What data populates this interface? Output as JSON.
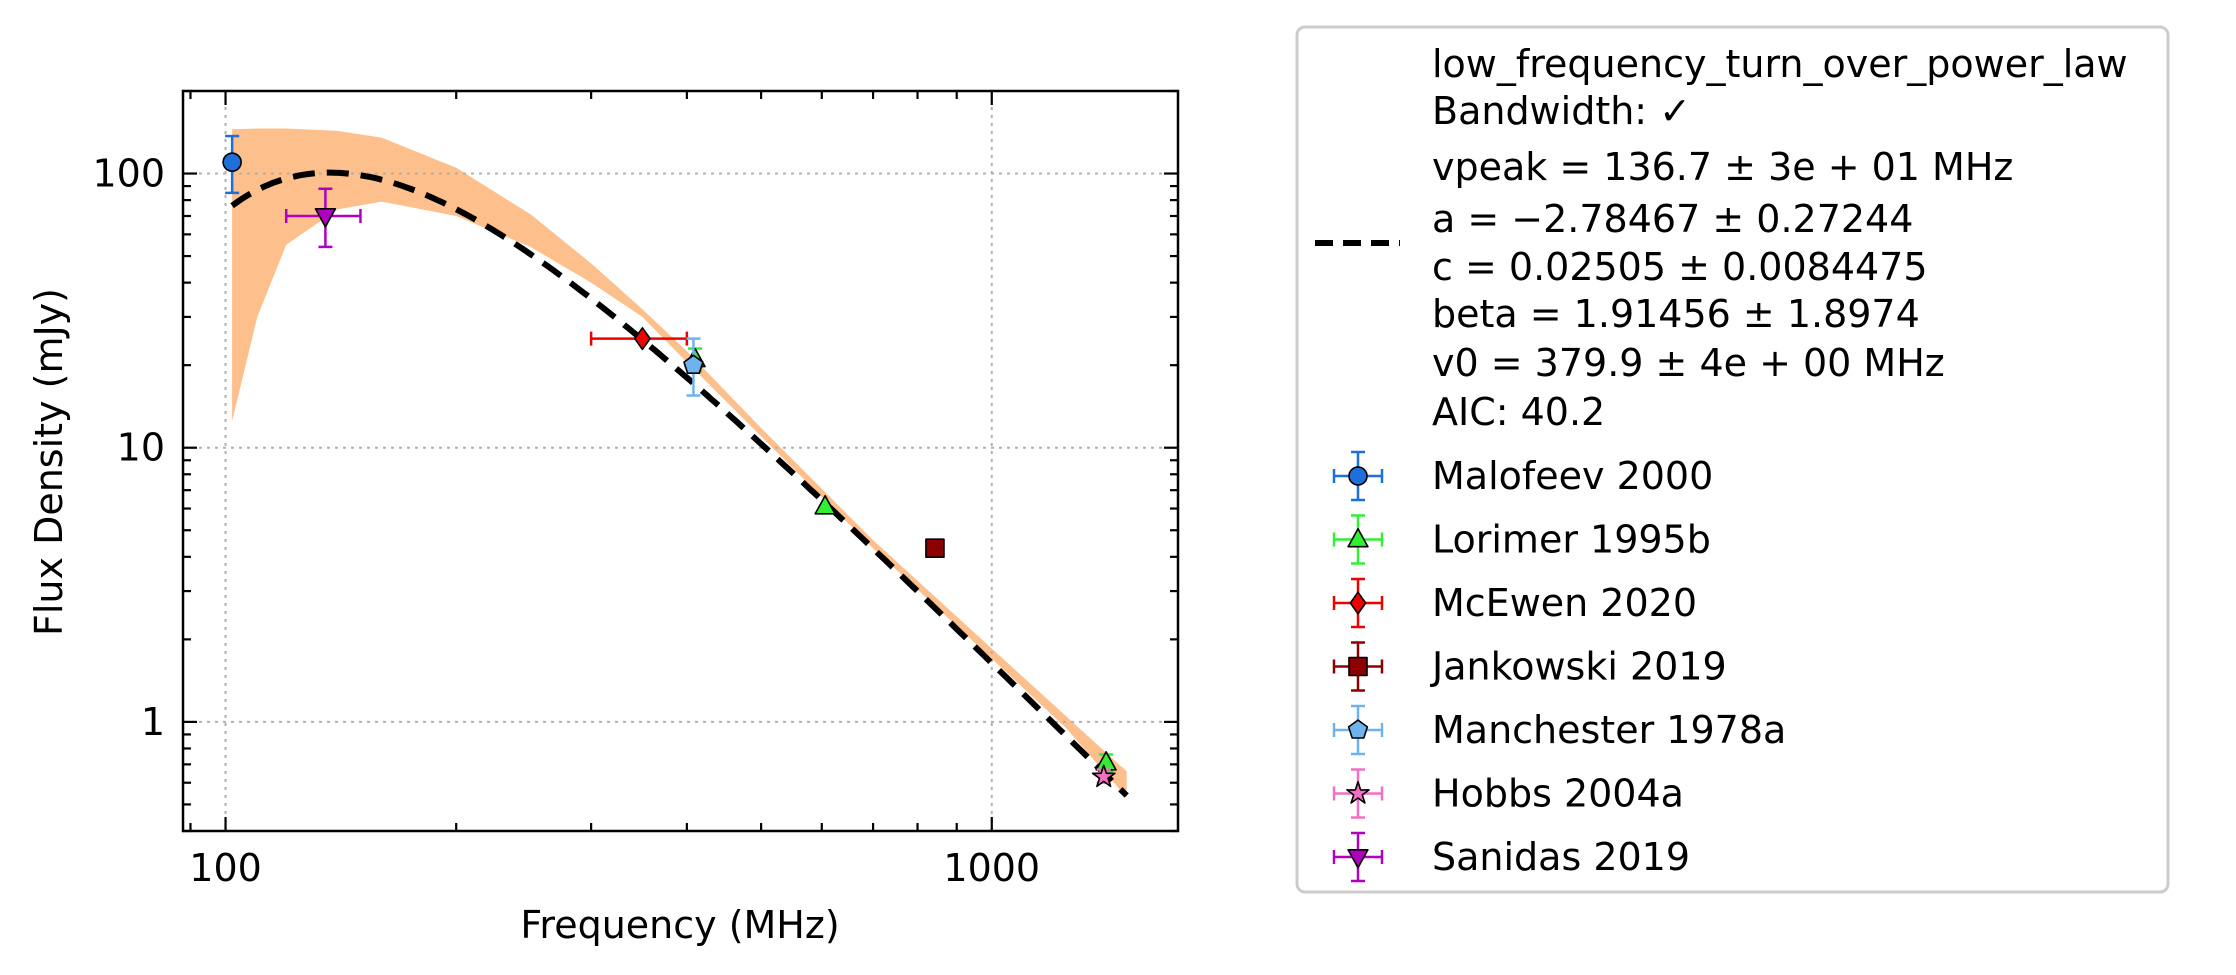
{
  "chart_data": {
    "type": "scatter",
    "x_scale": "log",
    "y_scale": "log",
    "xlabel": "Frequency (MHz)",
    "ylabel": "Flux Density (mJy)",
    "xlim": [
      88,
      1750
    ],
    "ylim": [
      0.4,
      200
    ],
    "grid": true,
    "x_ticks": [
      {
        "value": 100,
        "label": "100"
      },
      {
        "value": 1000,
        "label": "1000"
      }
    ],
    "y_ticks": [
      {
        "value": 1,
        "label": "1"
      },
      {
        "value": 10,
        "label": "10"
      },
      {
        "value": 100,
        "label": "100"
      }
    ],
    "legend_position": "right, outside plot",
    "fit": {
      "model": "low_frequency_turn_over_power_law",
      "vpeak": 136.7,
      "a": -2.78467,
      "c": 0.02505,
      "beta": 1.91456,
      "v0": 379.9,
      "aic": 40.2,
      "x_range": [
        102,
        1500
      ],
      "line_color": "#000000",
      "band_color": "#fdbf8b",
      "uncertainty_band": [
        {
          "x": 102,
          "lower": 12.5,
          "upper": 145
        },
        {
          "x": 110,
          "lower": 30,
          "upper": 146
        },
        {
          "x": 120,
          "lower": 55,
          "upper": 146
        },
        {
          "x": 140,
          "lower": 74,
          "upper": 143
        },
        {
          "x": 160,
          "lower": 79,
          "upper": 135
        },
        {
          "x": 200,
          "lower": 70,
          "upper": 105
        },
        {
          "x": 250,
          "lower": 54,
          "upper": 71
        },
        {
          "x": 300,
          "lower": 40,
          "upper": 47
        },
        {
          "x": 350,
          "lower": 30,
          "upper": 32
        },
        {
          "x": 400,
          "lower": 20.5,
          "upper": 22.5
        },
        {
          "x": 500,
          "lower": 11.0,
          "upper": 11.8
        },
        {
          "x": 700,
          "lower": 4.3,
          "upper": 4.6
        },
        {
          "x": 1000,
          "lower": 1.7,
          "upper": 1.85
        },
        {
          "x": 1250,
          "lower": 0.95,
          "upper": 1.05
        },
        {
          "x": 1500,
          "lower": 0.53,
          "upper": 0.66
        }
      ]
    },
    "series": [
      {
        "name": "Malofeev 2000",
        "marker": "circle",
        "color": "#1f6fd8",
        "errcolor": "#1f6fd8",
        "points": [
          {
            "x": 102,
            "y": 110,
            "ylo": 85,
            "yhi": 137
          }
        ]
      },
      {
        "name": "Lorimer 1995b",
        "marker": "triangle-up",
        "color": "#33ee33",
        "errcolor": "#33ee33",
        "points": [
          {
            "x": 410,
            "y": 21,
            "ylo": 19,
            "yhi": 23
          },
          {
            "x": 606,
            "y": 6.1
          },
          {
            "x": 1410,
            "y": 0.71,
            "ylo": 0.66,
            "yhi": 0.76
          }
        ]
      },
      {
        "name": "McEwen 2020",
        "marker": "diamond",
        "color": "#ee0000",
        "errcolor": "#ee0000",
        "points": [
          {
            "x": 350,
            "y": 25,
            "xlo": 300,
            "xhi": 400
          }
        ]
      },
      {
        "name": "Jankowski 2019",
        "marker": "square",
        "color": "#8b0000",
        "errcolor": "#8b0000",
        "points": [
          {
            "x": 843,
            "y": 4.3
          }
        ]
      },
      {
        "name": "Manchester 1978a",
        "marker": "pentagon",
        "color": "#6fb3ee",
        "errcolor": "#6fb3ee",
        "points": [
          {
            "x": 408,
            "y": 20,
            "ylo": 15.5,
            "yhi": 25
          }
        ]
      },
      {
        "name": "Hobbs 2004a",
        "marker": "star",
        "color": "#f26fc2",
        "errcolor": "#f26fc2",
        "points": [
          {
            "x": 1400,
            "y": 0.63,
            "ylo": 0.6,
            "yhi": 0.67
          }
        ]
      },
      {
        "name": "Sanidas 2019",
        "marker": "triangle-down",
        "color": "#b000c0",
        "errcolor": "#b000c0",
        "points": [
          {
            "x": 135,
            "y": 70,
            "xlo": 120,
            "xhi": 150,
            "ylo": 54,
            "yhi": 88
          }
        ]
      }
    ]
  },
  "legend": {
    "fit_entry_lines": [
      "low_frequency_turn_over_power_law",
      "Bandwidth: ✓",
      "vpeak = 136.7 ± 3e + 01 MHz",
      "a = −2.78467 ± 0.27244",
      "c = 0.02505 ± 0.0084475",
      "beta = 1.91456 ± 1.8974",
      "v0 = 379.9 ± 4e + 00 MHz",
      "AIC: 40.2"
    ]
  }
}
